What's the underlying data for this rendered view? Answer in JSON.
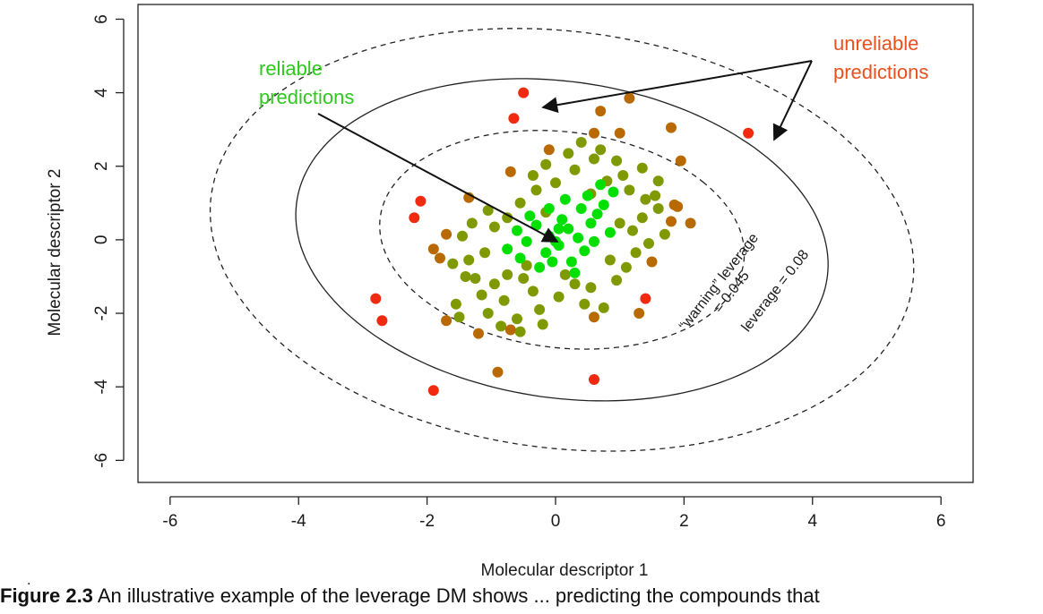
{
  "chart_data": {
    "type": "scatter",
    "xlabel": "Molecular descriptor 1",
    "ylabel": "Molecular descriptor 2",
    "xlim": [
      -6.5,
      6.5
    ],
    "ylim": [
      -6.6,
      6.4
    ],
    "xticks": [
      -6,
      -4,
      -2,
      0,
      2,
      4,
      6
    ],
    "yticks": [
      -6,
      -4,
      -2,
      0,
      2,
      4,
      6
    ],
    "xtick_labels": [
      "-6",
      "-4",
      "-2",
      "0",
      "2",
      "4",
      "6"
    ],
    "ytick_labels": [
      "-6",
      "-4",
      "-2",
      "0",
      "2",
      "4",
      "6"
    ],
    "grid": false,
    "colors": {
      "reliable": "#00e000",
      "moderate": "#7f9a00",
      "boundary": "#b86a00",
      "unreliable": "#f02a10",
      "green_text": "#2ec81e",
      "red_text": "#e8501e"
    },
    "contours": [
      {
        "label_line1": "“warning” leverage",
        "label_line2": "= 0.045",
        "style": "solid",
        "cx": 0.1,
        "cy": 0,
        "rx": 3.9,
        "ry": 4.6,
        "angle_deg": 35
      },
      {
        "label_line1": "leverage = 0.08",
        "label_line2": "",
        "style": "dashed",
        "cx": 0.1,
        "cy": 0,
        "rx": 5.2,
        "ry": 6.0,
        "angle_deg": 35
      },
      {
        "label_line1": "",
        "label_line2": "",
        "style": "dashed",
        "cx": 0.1,
        "cy": 0,
        "rx": 2.7,
        "ry": 3.1,
        "angle_deg": 35
      }
    ],
    "annotations": [
      {
        "line1": "reliable",
        "line2": "predictions",
        "color": "green_text"
      },
      {
        "line1": "unreliable",
        "line2": "predictions",
        "color": "red_text"
      }
    ],
    "points_outlier": [
      [
        -0.5,
        4.0
      ],
      [
        3.0,
        2.9
      ],
      [
        -0.65,
        3.3
      ],
      [
        -2.8,
        -1.6
      ],
      [
        -2.7,
        -2.2
      ],
      [
        -1.9,
        -4.1
      ],
      [
        -2.1,
        1.05
      ],
      [
        -2.2,
        0.6
      ],
      [
        0.6,
        -3.8
      ],
      [
        1.4,
        -1.6
      ]
    ],
    "points_boundary": [
      [
        1.15,
        3.85
      ],
      [
        1.8,
        3.05
      ],
      [
        0.7,
        3.5
      ],
      [
        0.6,
        2.9
      ],
      [
        1.0,
        2.9
      ],
      [
        1.95,
        2.15
      ],
      [
        -1.35,
        1.15
      ],
      [
        -1.9,
        -0.25
      ],
      [
        -1.8,
        -0.5
      ],
      [
        -1.7,
        0.15
      ],
      [
        -0.9,
        -3.6
      ],
      [
        2.1,
        0.45
      ],
      [
        1.9,
        0.9
      ],
      [
        1.8,
        0.5
      ],
      [
        -1.7,
        -2.2
      ],
      [
        -1.2,
        -2.55
      ],
      [
        -0.7,
        -2.45
      ],
      [
        1.5,
        -0.6
      ],
      [
        1.3,
        -2.0
      ],
      [
        0.6,
        -2.1
      ],
      [
        -0.1,
        2.45
      ],
      [
        -0.7,
        1.85
      ],
      [
        1.85,
        0.95
      ]
    ],
    "points_moderate": [
      [
        -1.05,
        0.8
      ],
      [
        -0.75,
        0.6
      ],
      [
        -0.95,
        0.35
      ],
      [
        -1.3,
        0.45
      ],
      [
        -1.45,
        0.1
      ],
      [
        -1.6,
        -0.65
      ],
      [
        -1.35,
        -0.55
      ],
      [
        -1.1,
        -0.35
      ],
      [
        -1.25,
        -1.05
      ],
      [
        -0.95,
        -1.2
      ],
      [
        -0.75,
        -0.95
      ],
      [
        -1.15,
        -1.5
      ],
      [
        -0.8,
        -1.65
      ],
      [
        -1.5,
        -2.1
      ],
      [
        -1.05,
        -2.0
      ],
      [
        -0.6,
        -2.15
      ],
      [
        -0.85,
        -2.35
      ],
      [
        -0.55,
        -2.5
      ],
      [
        -0.25,
        -1.9
      ],
      [
        -0.35,
        -1.4
      ],
      [
        0.05,
        -1.55
      ],
      [
        0.3,
        -1.2
      ],
      [
        0.55,
        -1.3
      ],
      [
        0.45,
        -1.75
      ],
      [
        0.75,
        -1.85
      ],
      [
        0.95,
        -1.1
      ],
      [
        1.1,
        -0.75
      ],
      [
        0.85,
        -0.55
      ],
      [
        1.25,
        -0.35
      ],
      [
        1.45,
        -0.1
      ],
      [
        1.2,
        0.25
      ],
      [
        1.0,
        0.45
      ],
      [
        1.35,
        0.6
      ],
      [
        1.6,
        0.85
      ],
      [
        1.4,
        1.1
      ],
      [
        1.15,
        1.35
      ],
      [
        1.05,
        1.75
      ],
      [
        0.8,
        1.6
      ],
      [
        0.55,
        1.25
      ],
      [
        0.6,
        2.2
      ],
      [
        0.3,
        1.9
      ],
      [
        0.0,
        1.55
      ],
      [
        -0.3,
        1.35
      ],
      [
        -0.55,
        1.0
      ],
      [
        -0.15,
        2.05
      ],
      [
        0.95,
        2.15
      ],
      [
        1.35,
        1.95
      ],
      [
        1.6,
        1.6
      ],
      [
        -0.35,
        1.75
      ],
      [
        0.2,
        2.35
      ],
      [
        0.4,
        2.65
      ],
      [
        -1.4,
        -1.0
      ],
      [
        -1.55,
        -1.75
      ],
      [
        -0.45,
        -0.7
      ],
      [
        0.15,
        -0.95
      ],
      [
        1.7,
        0.15
      ],
      [
        0.7,
        2.45
      ],
      [
        -0.5,
        -1.05
      ],
      [
        1.55,
        1.2
      ],
      [
        -0.15,
        0.75
      ],
      [
        -0.2,
        -2.3
      ]
    ],
    "points_reliable": [
      [
        -0.3,
        0.4
      ],
      [
        -0.1,
        0.1
      ],
      [
        0.05,
        -0.15
      ],
      [
        0.2,
        0.3
      ],
      [
        0.35,
        0.05
      ],
      [
        0.1,
        0.55
      ],
      [
        -0.15,
        -0.35
      ],
      [
        0.45,
        -0.3
      ],
      [
        -0.45,
        -0.05
      ],
      [
        0.25,
        -0.6
      ],
      [
        -0.1,
        0.85
      ],
      [
        0.55,
        0.45
      ],
      [
        0.65,
        0.7
      ],
      [
        0.75,
        0.95
      ],
      [
        0.4,
        0.85
      ],
      [
        -0.6,
        0.25
      ],
      [
        -0.75,
        -0.25
      ],
      [
        0.15,
        1.1
      ],
      [
        0.85,
        0.2
      ],
      [
        -0.25,
        -0.75
      ],
      [
        0.6,
        -0.05
      ],
      [
        0.0,
        -0.05
      ],
      [
        -0.4,
        0.65
      ],
      [
        0.3,
        -0.9
      ],
      [
        0.9,
        1.3
      ],
      [
        -0.55,
        -0.5
      ],
      [
        0.05,
        0.3
      ],
      [
        0.7,
        1.5
      ],
      [
        -0.05,
        -0.6
      ],
      [
        0.5,
        1.2
      ]
    ]
  },
  "caption": {
    "dot": ".",
    "label": "Figure 2.3",
    "text": " An illustrative example of the leverage DM shows ... predicting the compounds that"
  }
}
